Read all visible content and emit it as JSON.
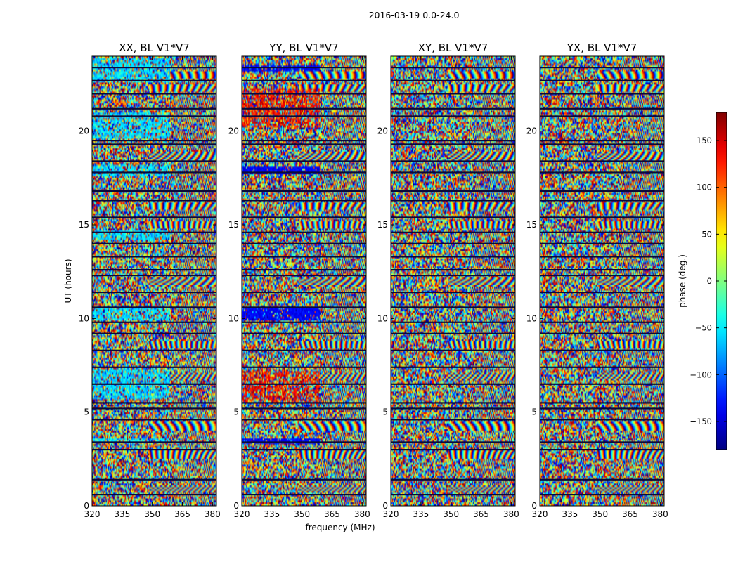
{
  "chart_data": {
    "type": "heatmap",
    "title": "2016-03-19 0.0-24.0",
    "xlabel": "frequency (MHz)",
    "ylabel": "UT (hours)",
    "xlim": [
      320,
      382
    ],
    "ylim": [
      0,
      24
    ],
    "x_ticks": [
      320,
      335,
      350,
      365,
      380
    ],
    "y_ticks": [
      0,
      5,
      10,
      15,
      20
    ],
    "panels": [
      {
        "title": "XX, BL V1*V7",
        "structure": "bands"
      },
      {
        "title": "YY, BL V1*V7",
        "structure": "bands"
      },
      {
        "title": "XY, BL V1*V7",
        "structure": "noise"
      },
      {
        "title": "YX, BL V1*V7",
        "structure": "noise"
      }
    ],
    "gap_times": [
      0.6,
      1.4,
      3.0,
      3.4,
      4.6,
      5.2,
      5.5,
      6.5,
      7.4,
      8.3,
      9.2,
      9.8,
      10.6,
      11.4,
      12.3,
      12.6,
      13.3,
      14.0,
      14.6,
      15.4,
      16.3,
      16.8,
      17.8,
      18.4,
      19.3,
      19.5,
      20.8,
      21.2,
      22.0,
      22.7,
      23.4
    ],
    "stripe_times": [
      0.9,
      2.7,
      4.3,
      6.9,
      8.6,
      11.9,
      15.0,
      16.0,
      18.7,
      22.3,
      23.0
    ],
    "colorbar": {
      "label": "phase (deg.)",
      "range": [
        -180,
        180
      ],
      "ticks": [
        -150,
        -100,
        -50,
        0,
        50,
        100,
        150
      ],
      "colormap": "jet",
      "footer": "....."
    }
  }
}
